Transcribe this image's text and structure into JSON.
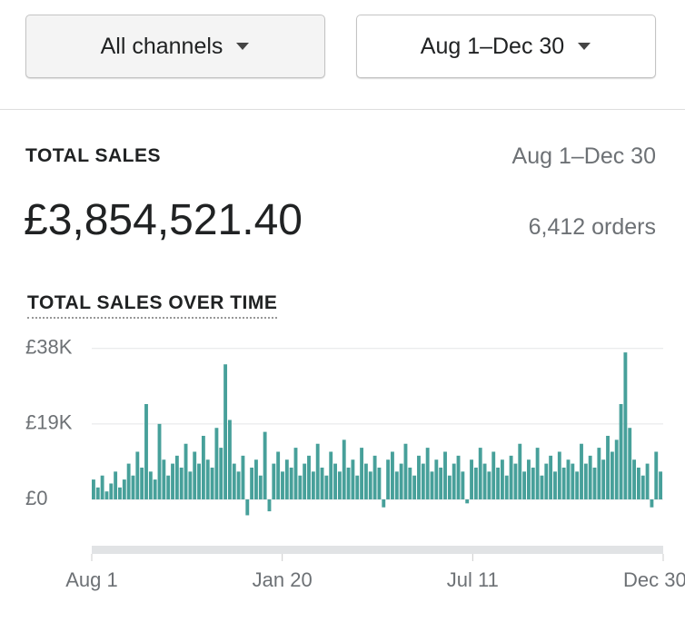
{
  "header": {
    "channel_filter": "All channels",
    "date_filter": "Aug 1–Dec 30"
  },
  "summary": {
    "title": "TOTAL SALES",
    "date_range": "Aug 1–Dec 30",
    "total": "£3,854,521.40",
    "orders": "6,412 orders"
  },
  "chart_data": {
    "type": "bar",
    "title": "TOTAL SALES OVER TIME",
    "color": "#47a09a",
    "values": [
      5000,
      3000,
      6000,
      2000,
      4000,
      7000,
      3000,
      5000,
      9000,
      6000,
      12000,
      8000,
      24000,
      7000,
      5000,
      19000,
      10000,
      6000,
      9000,
      11000,
      8000,
      14000,
      7000,
      12000,
      9000,
      16000,
      10000,
      8000,
      18000,
      13000,
      34000,
      20000,
      9000,
      7000,
      11000,
      -4000,
      8000,
      10000,
      6000,
      17000,
      -3000,
      9000,
      12000,
      7000,
      10000,
      8000,
      13000,
      6000,
      9000,
      11000,
      7000,
      14000,
      8000,
      6000,
      12000,
      9000,
      7000,
      15000,
      8000,
      10000,
      6000,
      13000,
      9000,
      7000,
      11000,
      8000,
      -2000,
      10000,
      12000,
      7000,
      9000,
      14000,
      8000,
      6000,
      11000,
      9000,
      13000,
      7000,
      10000,
      8000,
      12000,
      6000,
      9000,
      11000,
      7000,
      -1000,
      10000,
      8000,
      13000,
      9000,
      7000,
      12000,
      8000,
      10000,
      6000,
      11000,
      9000,
      14000,
      7000,
      10000,
      8000,
      13000,
      6000,
      9000,
      11000,
      7000,
      12000,
      8000,
      10000,
      9000,
      7000,
      14000,
      9000,
      11000,
      8000,
      13000,
      10000,
      16000,
      12000,
      15000,
      24000,
      37000,
      18000,
      10000,
      8000,
      6000,
      9000,
      -2000,
      12000,
      7000
    ],
    "ylim": [
      -6000,
      40000
    ],
    "yticks": [
      {
        "value": 0,
        "label": "£0"
      },
      {
        "value": 19000,
        "label": "£19K"
      },
      {
        "value": 38000,
        "label": "£38K"
      }
    ],
    "xtick_labels": [
      "Aug 1",
      "Jan 20",
      "Jul 11",
      "Dec 30"
    ],
    "grid": true
  }
}
